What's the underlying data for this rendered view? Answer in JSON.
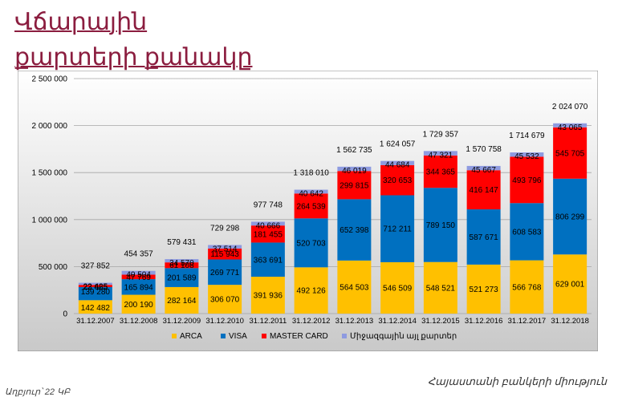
{
  "title_line1": "Վճարային",
  "title_line2": "քարտերի քանակը",
  "source_note": "Աղբյուր՝ 22 ԿԲ",
  "org_name": "Հայաստանի բանկերի միություն",
  "colors": {
    "arca": "#ffc000",
    "visa": "#0070c0",
    "master": "#ff0000",
    "intl": "#8e9ae0",
    "plot_bg_top": "#ffffff",
    "plot_bg_bottom": "#c9c9c9"
  },
  "chart_data": {
    "type": "bar",
    "stacked": true,
    "categories": [
      "31.12.2007",
      "31.12.2008",
      "31.12.2009",
      "31.12.2010",
      "31.12.2011",
      "31.12.2012",
      "31.12.2013",
      "31.12.2014",
      "31.12.2015",
      "31.12.2016",
      "31.12.2017",
      "31.12.2018"
    ],
    "series": [
      {
        "name": "ARCA",
        "key": "arca",
        "values": [
          142482,
          200190,
          282164,
          306070,
          391936,
          492126,
          564503,
          546509,
          548521,
          521273,
          566768,
          629001
        ],
        "labels": [
          "142 482",
          "200 190",
          "282 164",
          "306 070",
          "391 936",
          "492 126",
          "564 503",
          "546 509",
          "548 521",
          "521 273",
          "566 768",
          "629 001"
        ]
      },
      {
        "name": "VISA",
        "key": "visa",
        "values": [
          139280,
          165894,
          201589,
          269771,
          363691,
          520703,
          652398,
          712211,
          789150,
          587671,
          608583,
          806299
        ],
        "labels": [
          "139 280",
          "165 894",
          "201 589",
          "269 771",
          "363 691",
          "520 703",
          "652 398",
          "712 211",
          "789 150",
          "587 671",
          "608 583",
          "806 299"
        ]
      },
      {
        "name": "MASTER CARD",
        "key": "master",
        "values": [
          23665,
          47769,
          61108,
          115943,
          181455,
          264539,
          299815,
          320653,
          344365,
          416147,
          493796,
          545705
        ],
        "labels": [
          "23 665",
          "47 769",
          "61 108",
          "115 943",
          "181 455",
          "264 539",
          "299 815",
          "320 653",
          "344 365",
          "416 147",
          "493 796",
          "545 705"
        ]
      },
      {
        "name": "Միջազգային այլ քարտեր",
        "key": "intl",
        "values": [
          22425,
          40504,
          34570,
          37514,
          40666,
          40642,
          46019,
          44684,
          47321,
          45667,
          45532,
          43065
        ],
        "labels": [
          "22 425",
          "40 504",
          "34 570",
          "37 514",
          "40 666",
          "40 642",
          "46 019",
          "44 684",
          "47 321",
          "45 667",
          "45 532",
          "43 065"
        ]
      }
    ],
    "totals": [
      327852,
      454357,
      579431,
      729298,
      977748,
      1318010,
      1562735,
      1624057,
      1729357,
      1570758,
      1714679,
      2024070
    ],
    "total_labels": [
      "327 852",
      "454 357",
      "579 431",
      "729 298",
      "977 748",
      "1 318 010",
      "1 562 735",
      "1 624 057",
      "1 729 357",
      "1 570 758",
      "1 714 679",
      "2 024 070"
    ],
    "ylim": [
      0,
      2500000
    ],
    "yticks": [
      0,
      500000,
      1000000,
      1500000,
      2000000,
      2500000
    ],
    "ytick_labels": [
      "0",
      "500 000",
      "1 000 000",
      "1 500 000",
      "2 000 000",
      "2 500 000"
    ],
    "legend_position": "bottom",
    "grid": true
  }
}
